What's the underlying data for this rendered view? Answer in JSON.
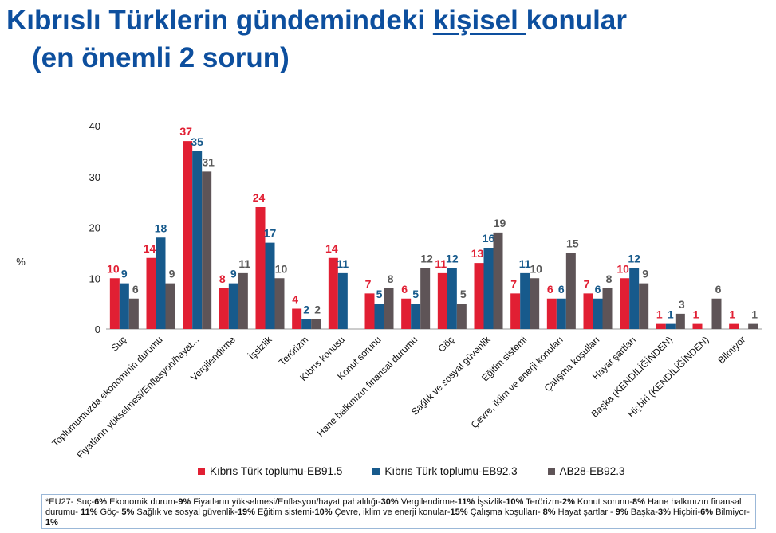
{
  "title": {
    "part1": "Kıbrıslı Türklerin gündemindeki ",
    "underlined": "kişisel ",
    "part2": "konular",
    "line2": "(en önemli 2 sorun)"
  },
  "chart_data": {
    "type": "bar",
    "ylabel": "%",
    "ylim": [
      0,
      40
    ],
    "yticks": [
      0,
      10,
      20,
      30,
      40
    ],
    "categories": [
      "Suç",
      "Toplumumuzda ekonominin durumu",
      "Fiyatların yükselmesi/Enflasyon/hayat...",
      "Vergilendirme",
      "İşsizlik",
      "Terörizm",
      "Kıbrıs konusu",
      "Konut sorunu",
      "Hane halkınızın finansal durumu",
      "Göç",
      "Sağlık ve sosyal güvenlik",
      "Eğitim sistemi",
      "Çevre, iklim ve enerji konuları",
      "Çalışma koşulları",
      "Hayat şartları",
      "Başka (KENDİLİĞİNDEN)",
      "Hiçbiri (KENDİLİĞİNDEN)",
      "Bilmiyor"
    ],
    "series": [
      {
        "name": "Kıbrıs Türk toplumu-EB91.5",
        "color": "#e11f33",
        "values": [
          10,
          14,
          37,
          8,
          24,
          4,
          14,
          7,
          6,
          11,
          13,
          7,
          6,
          7,
          10,
          1,
          1,
          1
        ]
      },
      {
        "name": "Kıbrıs Türk toplumu-EB92.3",
        "color": "#175a8c",
        "values": [
          9,
          18,
          35,
          9,
          17,
          2,
          11,
          5,
          5,
          12,
          16,
          11,
          6,
          6,
          12,
          1,
          null,
          null
        ]
      },
      {
        "name": "AB28-EB92.3",
        "color": "#5e5457",
        "values": [
          6,
          9,
          31,
          11,
          10,
          2,
          null,
          8,
          12,
          5,
          19,
          10,
          15,
          8,
          9,
          3,
          6,
          1
        ]
      }
    ],
    "label_colors": [
      "#e11f33",
      "#175a8c",
      "#595959"
    ]
  },
  "legend": {
    "items": [
      {
        "label": "Kıbrıs Türk toplumu-EB91.5",
        "color": "#e11f33"
      },
      {
        "label": "Kıbrıs Türk toplumu-EB92.3",
        "color": "#175a8c"
      },
      {
        "label": "AB28-EB92.3",
        "color": "#5e5457"
      }
    ]
  },
  "footnote": {
    "segments": [
      {
        "t": "*EU27- Suç-",
        "b": false
      },
      {
        "t": "6%",
        "b": true
      },
      {
        "t": " Ekonomik durum-",
        "b": false
      },
      {
        "t": "9%",
        "b": true
      },
      {
        "t": " Fiyatların yükselmesi/Enflasyon/hayat pahalılığı-",
        "b": false
      },
      {
        "t": "30%",
        "b": true
      },
      {
        "t": " Vergilendirme-",
        "b": false
      },
      {
        "t": "11%",
        "b": true
      },
      {
        "t": " İşsizlik-",
        "b": false
      },
      {
        "t": "10%",
        "b": true
      },
      {
        "t": " Terörizm-",
        "b": false
      },
      {
        "t": "2%",
        "b": true
      },
      {
        "t": " Konut sorunu-",
        "b": false
      },
      {
        "t": "8%",
        "b": true
      },
      {
        "t": " Hane halkınızın finansal durumu- ",
        "b": false
      },
      {
        "t": "11%",
        "b": true
      },
      {
        "t": " Göç- ",
        "b": false
      },
      {
        "t": "5%",
        "b": true
      },
      {
        "t": " Sağlık ve sosyal güvenlik-",
        "b": false
      },
      {
        "t": "19%",
        "b": true
      },
      {
        "t": " Eğitim sistemi-",
        "b": false
      },
      {
        "t": "10%",
        "b": true
      },
      {
        "t": " Çevre, iklim ve enerji konular-",
        "b": false
      },
      {
        "t": "15%",
        "b": true
      },
      {
        "t": " Çalışma koşulları- ",
        "b": false
      },
      {
        "t": "8%",
        "b": true
      },
      {
        "t": " Hayat şartları- ",
        "b": false
      },
      {
        "t": "9%",
        "b": true
      },
      {
        "t": " Başka-",
        "b": false
      },
      {
        "t": "3%",
        "b": true
      },
      {
        "t": " Hiçbiri-",
        "b": false
      },
      {
        "t": "6%",
        "b": true
      },
      {
        "t": " Bilmiyor-",
        "b": false
      },
      {
        "t": "1%",
        "b": true
      }
    ]
  }
}
